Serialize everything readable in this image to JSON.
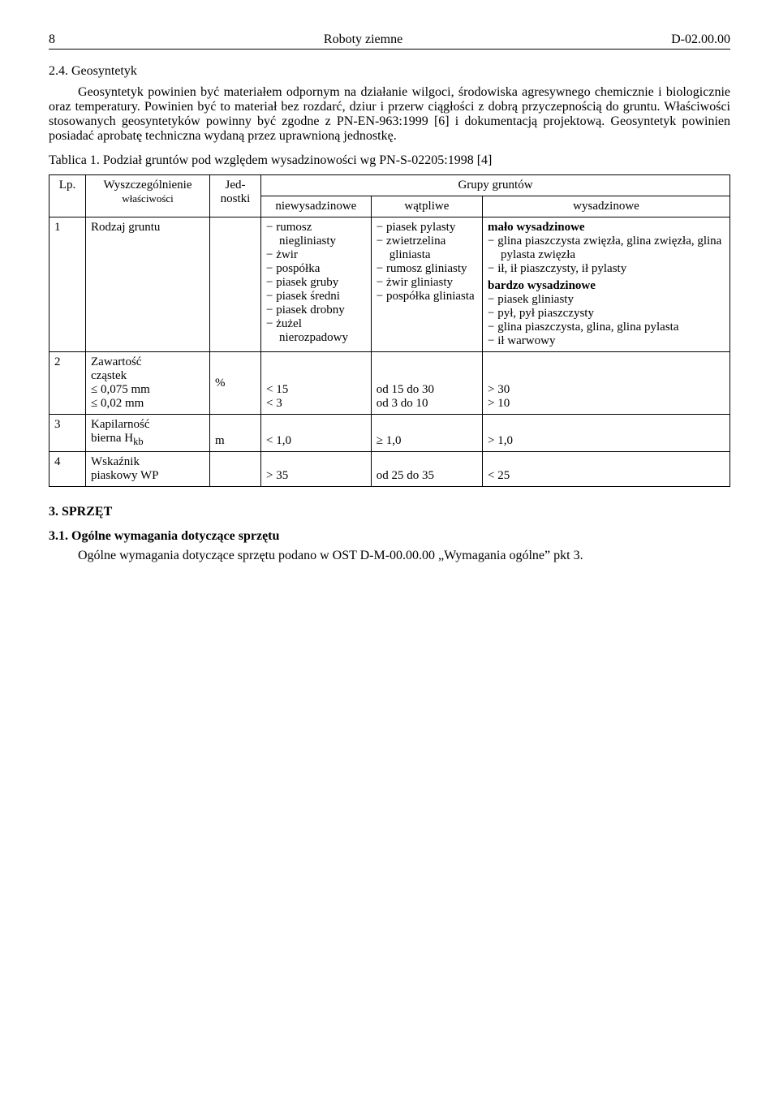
{
  "header": {
    "page_number": "8",
    "title": "Roboty ziemne",
    "doc_code": "D-02.00.00"
  },
  "section": {
    "heading": "2.4. Geosyntetyk"
  },
  "paragraphs": {
    "p1": "Geosyntetyk powinien być materiałem odpornym na działanie wilgoci, środowiska agresywnego chemicznie i biologicznie oraz temperatury. Powinien być to materiał bez rozdarć, dziur i przerw ciągłości z dobrą przyczepnością do gruntu. Właściwości stosowanych geosyntetyków powinny być zgodne z PN-EN-963:1999 [6] i dokumentacją projektową. Geosyntetyk powinien posiadać aprobatę techniczna wydaną przez uprawnioną jednostkę."
  },
  "table_caption": "Tablica 1. Podział gruntów pod względem wysadzinowości wg PN-S-02205:1998 [4]",
  "table_head": {
    "lp": "Lp.",
    "props_l1": "Wyszczególnienie",
    "props_l2": "właściwości",
    "unit_l1": "Jed-",
    "unit_l2": "nostki",
    "group": "Grupy gruntów",
    "g1": "niewysadzinowe",
    "g2": "wątpliwe",
    "g3": "wysadzinowe"
  },
  "row1": {
    "lp": "1",
    "prop": "Rodzaj gruntu",
    "unit": "",
    "g1_items": [
      "rumosz niegliniasty",
      "żwir",
      "pospółka",
      "piasek gruby",
      "piasek średni",
      "piasek drobny",
      "żużel nierozpadowy"
    ],
    "g2_items": [
      "piasek pylasty",
      "zwietrzelina gliniasta",
      "rumosz gliniasty",
      "żwir gliniasty",
      "pospółka gliniasta"
    ],
    "g3_label_a": "mało wysadzinowe",
    "g3_a_items": [
      "glina piaszczysta zwięzła, glina zwięzła, glina pylasta zwięzła",
      "ił, ił piaszczysty, ił pylasty"
    ],
    "g3_label_b": "bardzo wysadzinowe",
    "g3_b_items": [
      "piasek gliniasty",
      "pył, pył piaszczysty",
      "glina piaszczysta, glina, glina pylasta",
      "ił warwowy"
    ]
  },
  "row2": {
    "lp": "2",
    "prop_l1": "Zawartość",
    "prop_l2": "cząstek",
    "prop_l3": "≤ 0,075 mm",
    "prop_l4": "≤ 0,02   mm",
    "unit": "%",
    "g1_a": "< 15",
    "g1_b": "< 3",
    "g2_a": "od 15 do 30",
    "g2_b": "od 3 do 10",
    "g3_a": "> 30",
    "g3_b": "> 10"
  },
  "row3": {
    "lp": "3",
    "prop_l1": "Kapilarność",
    "prop_l2_pre": "bierna H",
    "prop_l2_sub": "kb",
    "unit": "m",
    "g1": "< 1,0",
    "g2": "≥ 1,0",
    "g3": "> 1,0"
  },
  "row4": {
    "lp": "4",
    "prop_l1": "Wskaźnik",
    "prop_l2": "piaskowy WP",
    "unit": "",
    "g1": "> 35",
    "g2": "od 25 do 35",
    "g3": "< 25"
  },
  "s3": {
    "heading": "3. SPRZĘT",
    "sub_heading": "3.1. Ogólne wymagania dotyczące sprzętu",
    "body": "Ogólne wymagania dotyczące sprzętu podano w OST D-M-00.00.00 „Wymagania ogólne” pkt 3."
  }
}
